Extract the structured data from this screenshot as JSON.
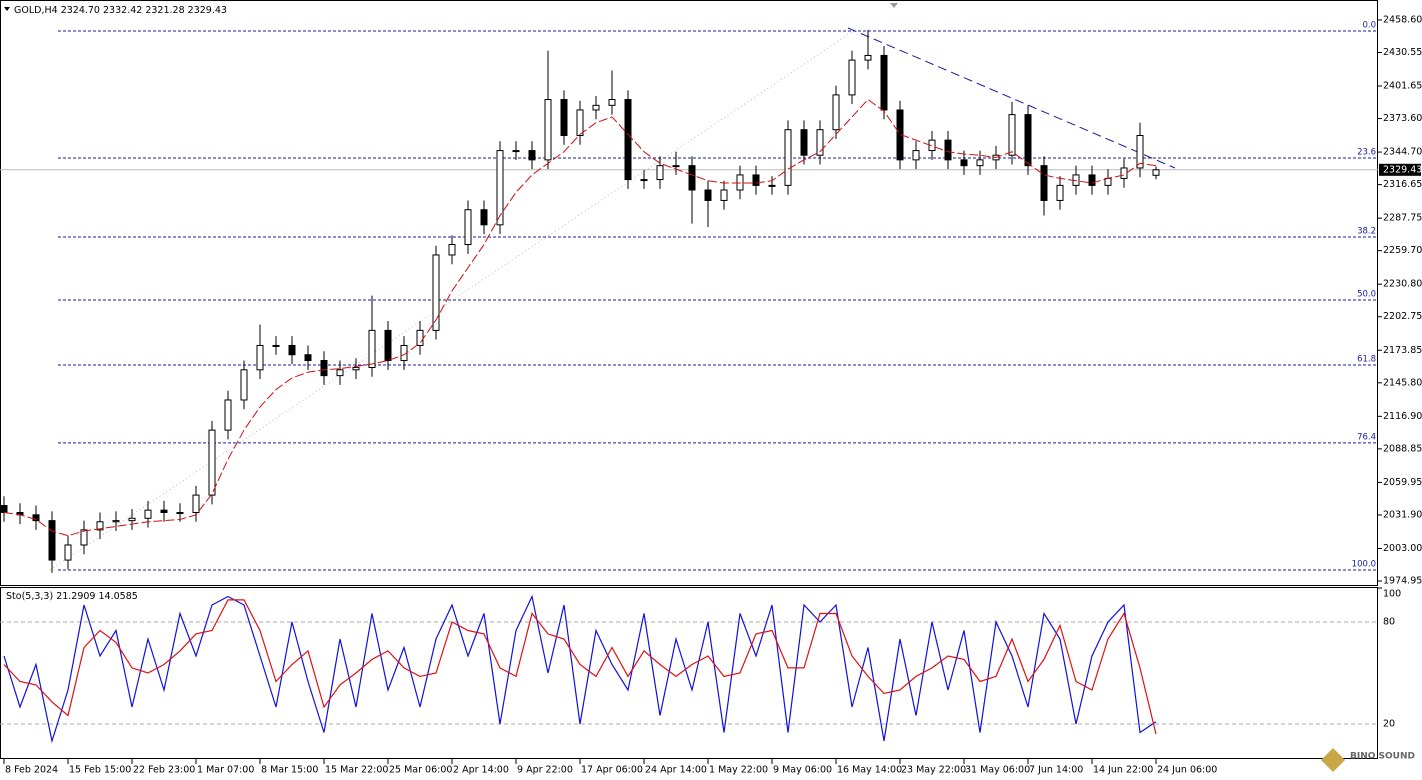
{
  "chart_data": [
    {
      "type": "candlestick",
      "title": "GOLD,H4",
      "quote_labels": [
        "2324.70",
        "2332.42",
        "2321.28",
        "2329.43"
      ],
      "categories": [
        "8 Feb 2024",
        null,
        null,
        null,
        "15 Feb 15:00",
        null,
        null,
        null,
        "22 Feb 23:00",
        null,
        null,
        null,
        "1 Mar 07:00",
        null,
        null,
        null,
        "8 Mar 15:00",
        null,
        null,
        null,
        "15 Mar 22:00",
        null,
        null,
        null,
        "25 Mar 06:00",
        null,
        null,
        null,
        "2 Apr 14:00",
        null,
        null,
        null,
        "9 Apr 22:00",
        null,
        null,
        null,
        "17 Apr 06:00",
        null,
        null,
        null,
        "24 Apr 14:00",
        null,
        null,
        null,
        "1 May 22:00",
        null,
        null,
        null,
        "9 May 06:00",
        null,
        null,
        null,
        "16 May 14:00",
        null,
        null,
        null,
        "23 May 22:00",
        null,
        null,
        null,
        "31 May 06:00",
        null,
        null,
        null,
        "7 Jun 14:00",
        null,
        null,
        null,
        "14 Jun 22:00",
        null,
        null,
        null,
        "24 Jun 06:00"
      ],
      "open": [
        2040,
        2034,
        2032,
        2027,
        1993,
        2006,
        2019,
        2026,
        2027,
        2029,
        2036,
        2034,
        2034,
        2049,
        2105,
        2131,
        2157,
        2178,
        2178,
        2170,
        2165,
        2152,
        2157,
        2159,
        2191,
        2165,
        2178,
        2191,
        2256,
        2265,
        2295,
        2282,
        2346,
        2346,
        2338,
        2390,
        2359,
        2381,
        2385,
        2390,
        2321,
        2321,
        2333,
        2333,
        2312,
        2303,
        2312,
        2325,
        2316,
        2316,
        2364,
        2342,
        2364,
        2394,
        2424,
        2428,
        2381,
        2338,
        2346,
        2355,
        2338,
        2333,
        2338,
        2342,
        2377,
        2333,
        2303,
        2316,
        2325,
        2316,
        2322,
        2331,
        2324.7
      ],
      "high": [
        2048,
        2042,
        2040,
        2035,
        2014,
        2027,
        2034,
        2035,
        2037,
        2044,
        2044,
        2042,
        2057,
        2113,
        2139,
        2165,
        2196,
        2186,
        2186,
        2178,
        2173,
        2165,
        2167,
        2221,
        2199,
        2186,
        2199,
        2264,
        2273,
        2303,
        2303,
        2354,
        2354,
        2354,
        2432,
        2398,
        2389,
        2393,
        2415,
        2398,
        2329,
        2341,
        2345,
        2341,
        2320,
        2320,
        2333,
        2333,
        2324,
        2372,
        2372,
        2372,
        2402,
        2432,
        2450,
        2436,
        2389,
        2354,
        2363,
        2363,
        2346,
        2346,
        2350,
        2388,
        2385,
        2341,
        2324,
        2333,
        2333,
        2330,
        2339,
        2370,
        2332.42
      ],
      "low": [
        2026,
        2024,
        2019,
        1982,
        1985,
        1998,
        2011,
        2018,
        2019,
        2021,
        2026,
        2026,
        2026,
        2041,
        2097,
        2123,
        2149,
        2170,
        2162,
        2157,
        2144,
        2144,
        2149,
        2151,
        2157,
        2157,
        2170,
        2183,
        2248,
        2257,
        2274,
        2274,
        2338,
        2330,
        2330,
        2351,
        2351,
        2373,
        2377,
        2313,
        2313,
        2313,
        2325,
        2283,
        2280,
        2295,
        2304,
        2308,
        2308,
        2308,
        2334,
        2334,
        2356,
        2386,
        2416,
        2373,
        2330,
        2330,
        2338,
        2330,
        2325,
        2325,
        2330,
        2334,
        2325,
        2290,
        2295,
        2308,
        2308,
        2308,
        2314,
        2323,
        2321.28
      ],
      "close": [
        2034,
        2032,
        2027,
        1993,
        2006,
        2019,
        2026,
        2027,
        2029,
        2036,
        2034,
        2034,
        2049,
        2105,
        2131,
        2157,
        2178,
        2178,
        2170,
        2165,
        2152,
        2157,
        2159,
        2191,
        2165,
        2178,
        2191,
        2256,
        2265,
        2295,
        2282,
        2346,
        2346,
        2338,
        2390,
        2359,
        2381,
        2385,
        2390,
        2321,
        2321,
        2333,
        2333,
        2312,
        2303,
        2312,
        2325,
        2316,
        2316,
        2364,
        2342,
        2364,
        2394,
        2424,
        2428,
        2381,
        2338,
        2346,
        2355,
        2338,
        2333,
        2338,
        2342,
        2377,
        2333,
        2303,
        2316,
        2325,
        2316,
        2322,
        2331,
        2359,
        2329.43
      ],
      "color": "#000000",
      "moving_average": {
        "color": "#d01010",
        "values": [
          2034,
          2032,
          2028,
          2018,
          2014,
          2018,
          2020,
          2022,
          2024,
          2026,
          2027,
          2028,
          2032,
          2050,
          2080,
          2105,
          2125,
          2140,
          2150,
          2155,
          2157,
          2158,
          2160,
          2162,
          2165,
          2170,
          2180,
          2200,
          2225,
          2245,
          2265,
          2290,
          2310,
          2325,
          2335,
          2345,
          2360,
          2370,
          2375,
          2360,
          2345,
          2335,
          2330,
          2325,
          2320,
          2318,
          2318,
          2318,
          2320,
          2330,
          2338,
          2345,
          2360,
          2375,
          2390,
          2380,
          2360,
          2355,
          2350,
          2345,
          2343,
          2342,
          2340,
          2345,
          2335,
          2325,
          2322,
          2320,
          2318,
          2322,
          2325,
          2335,
          2333
        ]
      },
      "ylim": [
        1971.5,
        2475.8
      ],
      "yticks": [
        {
          "value": 2458.6,
          "label": "2458.60"
        },
        {
          "value": 2430.55,
          "label": "2430.55"
        },
        {
          "value": 2401.65,
          "label": "2401.65"
        },
        {
          "value": 2373.6,
          "label": "2373.60"
        },
        {
          "value": 2344.7,
          "label": "2344.70"
        },
        {
          "value": 2316.65,
          "label": "2316.65"
        },
        {
          "value": 2287.75,
          "label": "2287.75"
        },
        {
          "value": 2259.7,
          "label": "2259.70"
        },
        {
          "value": 2230.8,
          "label": "2230.80"
        },
        {
          "value": 2202.75,
          "label": "2202.75"
        },
        {
          "value": 2173.85,
          "label": "2173.85"
        },
        {
          "value": 2145.8,
          "label": "2145.80"
        },
        {
          "value": 2116.9,
          "label": "2116.90"
        },
        {
          "value": 2088.85,
          "label": "2088.85"
        },
        {
          "value": 2059.95,
          "label": "2059.95"
        },
        {
          "value": 2031.9,
          "label": "2031.90"
        },
        {
          "value": 2003,
          "label": "2003.00"
        },
        {
          "value": 1974.95,
          "label": "1974.95"
        }
      ],
      "fib_color": "#1a1aa0",
      "fib_levels": [
        {
          "label": "0.0",
          "price": 2449.1
        },
        {
          "label": "23.6",
          "price": 2339.6
        },
        {
          "label": "38.2",
          "price": 2271.5
        },
        {
          "label": "50.0",
          "price": 2217.2
        },
        {
          "label": "61.8",
          "price": 2161.2
        },
        {
          "label": "76.4",
          "price": 2094
        },
        {
          "label": "100.0",
          "price": 1984.4
        }
      ]
    },
    {
      "type": "line",
      "title": "Sto(5,3,3)",
      "series": [
        {
          "color": "#1010e0",
          "values": [
            60,
            30,
            55,
            10,
            40,
            90,
            60,
            75,
            30,
            70,
            40,
            85,
            60,
            90,
            95,
            90,
            60,
            30,
            80,
            45,
            15,
            70,
            30,
            85,
            40,
            65,
            30,
            70,
            90,
            60,
            85,
            20,
            75,
            95,
            50,
            90,
            20,
            75,
            55,
            40,
            85,
            25,
            70,
            40,
            80,
            15,
            85,
            60,
            90,
            15,
            90,
            80,
            90,
            30,
            65,
            10,
            70,
            25,
            80,
            40,
            75,
            15,
            80,
            60,
            30,
            85,
            70,
            20,
            60,
            80,
            90,
            15,
            21.2909
          ]
        },
        {
          "color": "#e01010",
          "values": [
            55,
            45,
            43,
            33,
            25,
            65,
            75,
            68,
            53,
            50,
            55,
            63,
            73,
            75,
            93,
            93,
            75,
            45,
            55,
            63,
            30,
            43,
            50,
            58,
            63,
            53,
            48,
            50,
            80,
            75,
            73,
            53,
            48,
            85,
            73,
            70,
            55,
            48,
            65,
            48,
            63,
            55,
            48,
            55,
            60,
            48,
            50,
            73,
            75,
            53,
            53,
            85,
            85,
            60,
            48,
            38,
            40,
            48,
            53,
            60,
            58,
            45,
            48,
            70,
            45,
            58,
            78,
            45,
            40,
            70,
            85,
            53,
            14.0585
          ]
        }
      ],
      "ylim": [
        0,
        100
      ],
      "yticks": [
        100,
        80,
        20
      ]
    }
  ],
  "watermark": "BINO SOUND"
}
